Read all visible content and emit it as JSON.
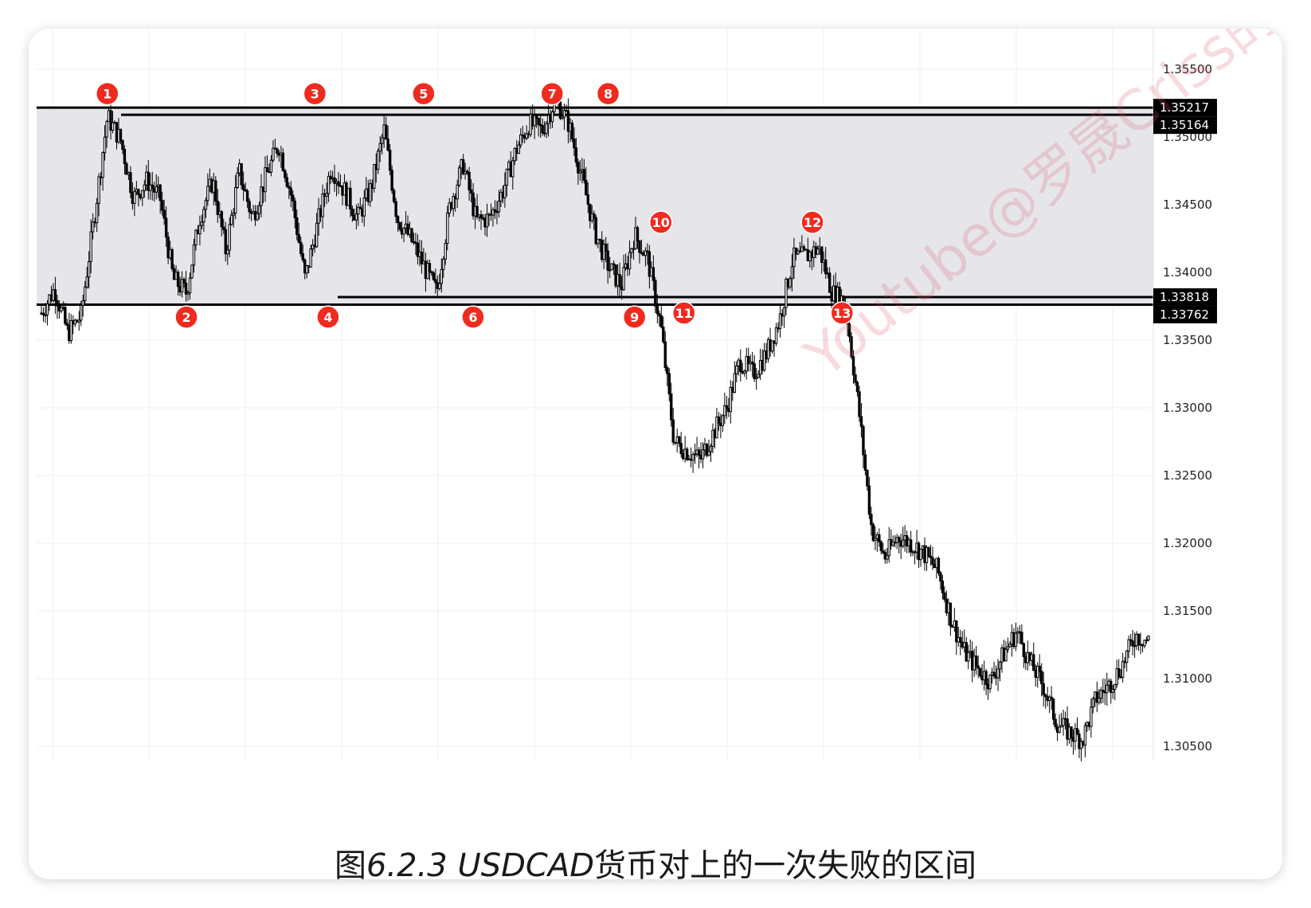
{
  "caption": {
    "prefix": "图",
    "number": "6.2.3 USDCAD",
    "suffix": "货币对上的一次失败的区间"
  },
  "watermark": "Youtube@罗晟Criss的",
  "colors": {
    "zone_fill": "#e6e6ea",
    "marker": "#f02a1e",
    "candle": "#000000",
    "grid": "#efefef"
  },
  "chart_data": {
    "type": "candlestick",
    "symbol": "USDCAD",
    "ylim": [
      1.304,
      1.358
    ],
    "yticks": [
      "1.30500",
      "1.31000",
      "1.31500",
      "1.32000",
      "1.32500",
      "1.33000",
      "1.33500",
      "1.34000",
      "1.34500",
      "1.35000",
      "1.35500"
    ],
    "grid": true,
    "range_zone": {
      "upper": 1.35217,
      "lower": 1.33762
    },
    "horizontal_lines": [
      {
        "label": "1.35217",
        "value": 1.35217
      },
      {
        "label": "1.35164",
        "value": 1.35164
      },
      {
        "label": "1.33818",
        "value": 1.33818
      },
      {
        "label": "1.33762",
        "value": 1.33762
      }
    ],
    "price_path": [
      [
        0,
        1.337
      ],
      [
        2,
        1.3388
      ],
      [
        4,
        1.3355
      ],
      [
        6,
        1.3368
      ],
      [
        8,
        1.344
      ],
      [
        10,
        1.3515
      ],
      [
        12,
        1.3498
      ],
      [
        14,
        1.3455
      ],
      [
        16,
        1.3468
      ],
      [
        18,
        1.3455
      ],
      [
        20,
        1.3395
      ],
      [
        22,
        1.3385
      ],
      [
        24,
        1.344
      ],
      [
        26,
        1.3468
      ],
      [
        28,
        1.3415
      ],
      [
        30,
        1.3475
      ],
      [
        32,
        1.344
      ],
      [
        34,
        1.347
      ],
      [
        36,
        1.3495
      ],
      [
        38,
        1.3455
      ],
      [
        40,
        1.3395
      ],
      [
        42,
        1.3438
      ],
      [
        44,
        1.3478
      ],
      [
        46,
        1.346
      ],
      [
        48,
        1.344
      ],
      [
        50,
        1.3462
      ],
      [
        52,
        1.3505
      ],
      [
        54,
        1.344
      ],
      [
        56,
        1.3425
      ],
      [
        58,
        1.3405
      ],
      [
        60,
        1.3385
      ],
      [
        62,
        1.345
      ],
      [
        64,
        1.348
      ],
      [
        66,
        1.3438
      ],
      [
        68,
        1.344
      ],
      [
        70,
        1.346
      ],
      [
        72,
        1.349
      ],
      [
        74,
        1.351
      ],
      [
        76,
        1.3505
      ],
      [
        78,
        1.3528
      ],
      [
        80,
        1.351
      ],
      [
        82,
        1.347
      ],
      [
        84,
        1.343
      ],
      [
        86,
        1.3405
      ],
      [
        88,
        1.339
      ],
      [
        90,
        1.3428
      ],
      [
        92,
        1.341
      ],
      [
        94,
        1.336
      ],
      [
        96,
        1.3275
      ],
      [
        98,
        1.3268
      ],
      [
        100,
        1.3262
      ],
      [
        102,
        1.3282
      ],
      [
        104,
        1.33
      ],
      [
        106,
        1.3335
      ],
      [
        108,
        1.3325
      ],
      [
        110,
        1.334
      ],
      [
        112,
        1.3365
      ],
      [
        114,
        1.341
      ],
      [
        116,
        1.3412
      ],
      [
        118,
        1.3418
      ],
      [
        120,
        1.3385
      ],
      [
        122,
        1.3378
      ],
      [
        124,
        1.33
      ],
      [
        126,
        1.321
      ],
      [
        128,
        1.319
      ],
      [
        130,
        1.3205
      ],
      [
        132,
        1.32
      ],
      [
        134,
        1.3192
      ],
      [
        136,
        1.318
      ],
      [
        138,
        1.3145
      ],
      [
        140,
        1.312
      ],
      [
        142,
        1.3108
      ],
      [
        144,
        1.3098
      ],
      [
        146,
        1.3118
      ],
      [
        148,
        1.3135
      ],
      [
        150,
        1.3112
      ],
      [
        152,
        1.3095
      ],
      [
        154,
        1.3068
      ],
      [
        156,
        1.306
      ],
      [
        158,
        1.3055
      ],
      [
        160,
        1.3085
      ],
      [
        162,
        1.3095
      ],
      [
        164,
        1.311
      ],
      [
        166,
        1.3132
      ],
      [
        168,
        1.3128
      ]
    ],
    "annotations": [
      {
        "label": "1",
        "x": 10,
        "y": 1.3532
      },
      {
        "label": "2",
        "x": 22,
        "y": 1.3367
      },
      {
        "label": "3",
        "x": 41.5,
        "y": 1.3532
      },
      {
        "label": "4",
        "x": 43.5,
        "y": 1.3367
      },
      {
        "label": "5",
        "x": 58,
        "y": 1.3532
      },
      {
        "label": "6",
        "x": 65.5,
        "y": 1.3367
      },
      {
        "label": "7",
        "x": 77.5,
        "y": 1.3532
      },
      {
        "label": "8",
        "x": 86,
        "y": 1.3532
      },
      {
        "label": "9",
        "x": 90,
        "y": 1.3367
      },
      {
        "label": "10",
        "x": 94,
        "y": 1.3437
      },
      {
        "label": "11",
        "x": 97.5,
        "y": 1.337
      },
      {
        "label": "12",
        "x": 117,
        "y": 1.3437
      },
      {
        "label": "13",
        "x": 121.5,
        "y": 1.337
      }
    ]
  }
}
